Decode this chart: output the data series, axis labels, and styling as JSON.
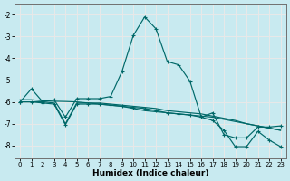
{
  "xlabel": "Humidex (Indice chaleur)",
  "bg_color": "#c8eaf0",
  "grid_color": "#e8e8e8",
  "line_color": "#006868",
  "xlim": [
    -0.5,
    23.5
  ],
  "ylim": [
    -8.6,
    -1.5
  ],
  "xticks": [
    0,
    1,
    2,
    3,
    4,
    5,
    6,
    7,
    8,
    9,
    10,
    11,
    12,
    13,
    14,
    15,
    16,
    17,
    18,
    19,
    20,
    21,
    22,
    23
  ],
  "yticks": [
    -2,
    -3,
    -4,
    -5,
    -6,
    -7,
    -8
  ],
  "s1_x": [
    0,
    1,
    2,
    3,
    4,
    5,
    6,
    7,
    8,
    9,
    10,
    11,
    12,
    13,
    14,
    15,
    16,
    17,
    18,
    19,
    20,
    21,
    22,
    23
  ],
  "s1_y": [
    -6.0,
    -5.4,
    -6.0,
    -5.9,
    -6.7,
    -5.85,
    -5.85,
    -5.85,
    -5.75,
    -4.6,
    -2.95,
    -2.1,
    -2.65,
    -4.15,
    -4.3,
    -5.05,
    -6.7,
    -6.5,
    -7.5,
    -7.65,
    -7.65,
    -7.15,
    -7.15,
    -7.1
  ],
  "s2_x": [
    0,
    1,
    2,
    3,
    4,
    5,
    6,
    7,
    8,
    9,
    10,
    11,
    12,
    13,
    14,
    15,
    16,
    17,
    18,
    19,
    20,
    21,
    22,
    23
  ],
  "s2_y": [
    -5.9,
    -5.9,
    -5.95,
    -5.97,
    -5.98,
    -6.0,
    -6.05,
    -6.1,
    -6.15,
    -6.2,
    -6.3,
    -6.4,
    -6.45,
    -6.5,
    -6.55,
    -6.6,
    -6.65,
    -6.7,
    -6.8,
    -6.9,
    -7.0,
    -7.1,
    -7.2,
    -7.3
  ],
  "s3_x": [
    0,
    1,
    2,
    3,
    4,
    5,
    6,
    7,
    8,
    9,
    10,
    11,
    12,
    13,
    14,
    15,
    16,
    17,
    18,
    19,
    20,
    21,
    22,
    23
  ],
  "s3_y": [
    -6.0,
    -6.0,
    -6.0,
    -6.05,
    -7.0,
    -6.05,
    -6.05,
    -6.05,
    -6.1,
    -6.15,
    -6.2,
    -6.25,
    -6.3,
    -6.4,
    -6.45,
    -6.5,
    -6.55,
    -6.65,
    -6.75,
    -6.85,
    -7.0,
    -7.1,
    -7.2,
    -7.3
  ],
  "s4_x": [
    0,
    1,
    2,
    3,
    4,
    5,
    6,
    7,
    8,
    9,
    10,
    11,
    12,
    13,
    14,
    15,
    16,
    17,
    18,
    19,
    20,
    21,
    22,
    23
  ],
  "s4_y": [
    -6.0,
    -6.0,
    -6.05,
    -6.1,
    -7.05,
    -6.1,
    -6.1,
    -6.1,
    -6.15,
    -6.2,
    -6.25,
    -6.3,
    -6.4,
    -6.5,
    -6.55,
    -6.6,
    -6.7,
    -6.85,
    -7.3,
    -8.05,
    -8.05,
    -7.35,
    -7.75,
    -8.05
  ]
}
